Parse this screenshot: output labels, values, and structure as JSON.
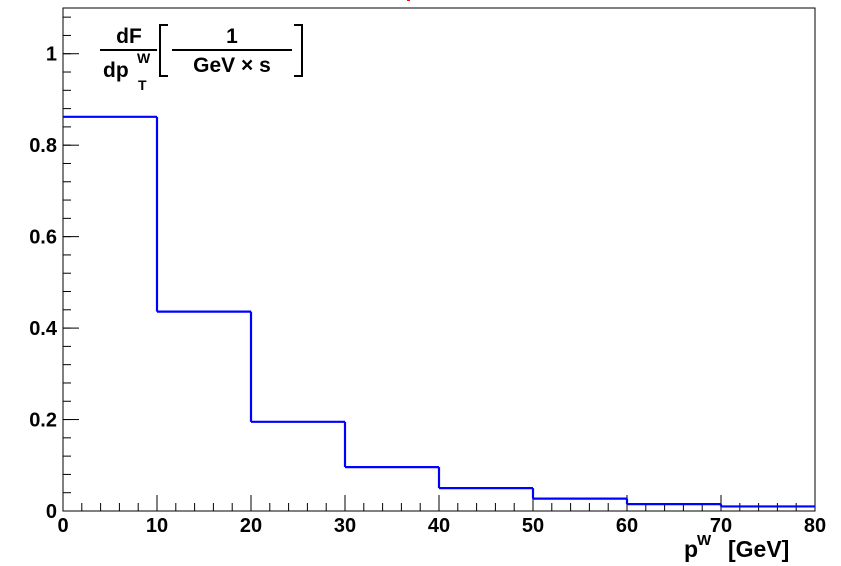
{
  "chart_data": {
    "type": "bar",
    "style": "step-histogram",
    "bin_edges": [
      0,
      10,
      20,
      30,
      40,
      50,
      60,
      70,
      80
    ],
    "values": [
      0.862,
      0.436,
      0.195,
      0.096,
      0.05,
      0.027,
      0.015,
      0.01
    ],
    "xlim": [
      0,
      80
    ],
    "ylim": [
      0,
      1.1
    ],
    "x_ticks": [
      0,
      10,
      20,
      30,
      40,
      50,
      60,
      70,
      80
    ],
    "x_tick_labels": [
      "0",
      "10",
      "20",
      "30",
      "40",
      "50",
      "60",
      "70",
      "80"
    ],
    "y_ticks": [
      0,
      0.2,
      0.4,
      0.6,
      0.8,
      1
    ],
    "y_tick_labels": [
      "0",
      "0.2",
      "0.4",
      "0.6",
      "0.8",
      "1"
    ],
    "xlabel": {
      "base": "p",
      "sup": "W",
      "unit": "[GeV]"
    },
    "ylabel": {
      "numerator": "dF",
      "denominator_base": "dp",
      "denominator_sup": "W",
      "denominator_sub": "T",
      "unit_numerator": "1",
      "unit_denominator": "GeV × s"
    },
    "grid": false,
    "legend": "none",
    "line_color": "#0000ff",
    "axis_color": "#000000",
    "title_fragment_color": "#ff0000"
  }
}
